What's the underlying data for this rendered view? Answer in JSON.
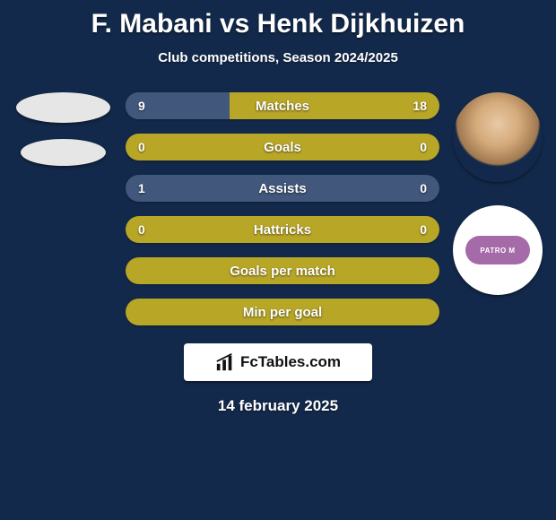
{
  "title": "F. Mabani vs Henk Dijkhuizen",
  "subtitle": "Club competitions, Season 2024/2025",
  "colors": {
    "background": "#13294b",
    "bar_base": "#b8a627",
    "bar_accent": "#41577b",
    "text": "#ffffff",
    "branding_bg": "#ffffff",
    "branding_text": "#111111",
    "logo_badge": "#a56aa8"
  },
  "bars": [
    {
      "label": "Matches",
      "left": "9",
      "right": "18",
      "left_pct": 33,
      "show_values": true
    },
    {
      "label": "Goals",
      "left": "0",
      "right": "0",
      "left_pct": 0,
      "show_values": true
    },
    {
      "label": "Assists",
      "left": "1",
      "right": "0",
      "left_pct": 100,
      "show_values": true
    },
    {
      "label": "Hattricks",
      "left": "0",
      "right": "0",
      "left_pct": 0,
      "show_values": true
    },
    {
      "label": "Goals per match",
      "left": "",
      "right": "",
      "left_pct": 0,
      "show_values": false
    },
    {
      "label": "Min per goal",
      "left": "",
      "right": "",
      "left_pct": 0,
      "show_values": false
    }
  ],
  "branding": "FcTables.com",
  "date": "14 february 2025",
  "logo_text": "PATRO M"
}
